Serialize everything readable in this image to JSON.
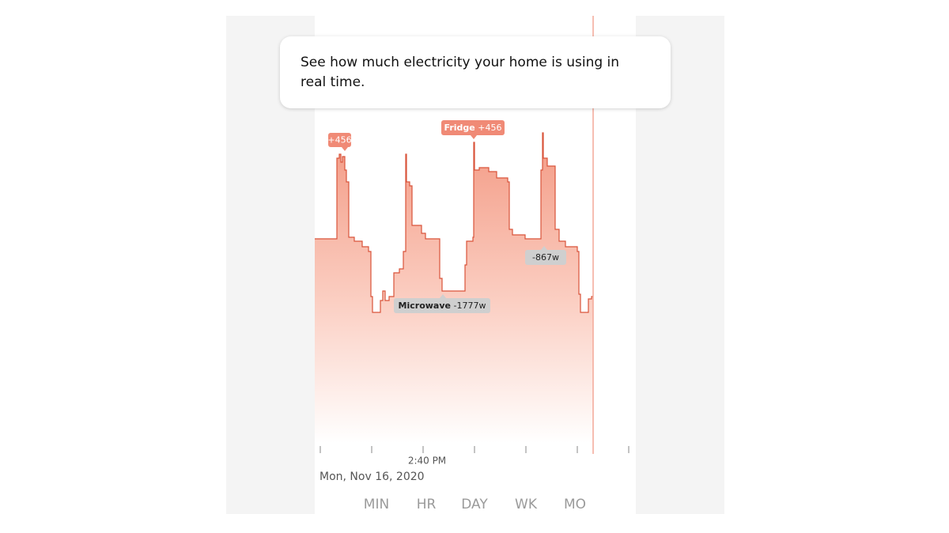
{
  "tooltip": {
    "text_line1": "See how much electricity your home is using in",
    "text_line2": "real time."
  },
  "annotations": [
    {
      "value": "+456"
    },
    {
      "name": "Fridge",
      "value": "+456"
    },
    {
      "value": "-867w"
    },
    {
      "name": "Microwave",
      "value": "-1777w"
    }
  ],
  "time_label": "2:40 PM",
  "date": "Mon, Nov 16, 2020",
  "tabs": [
    "MIN",
    "HR",
    "DAY",
    "WK",
    "MO"
  ]
}
